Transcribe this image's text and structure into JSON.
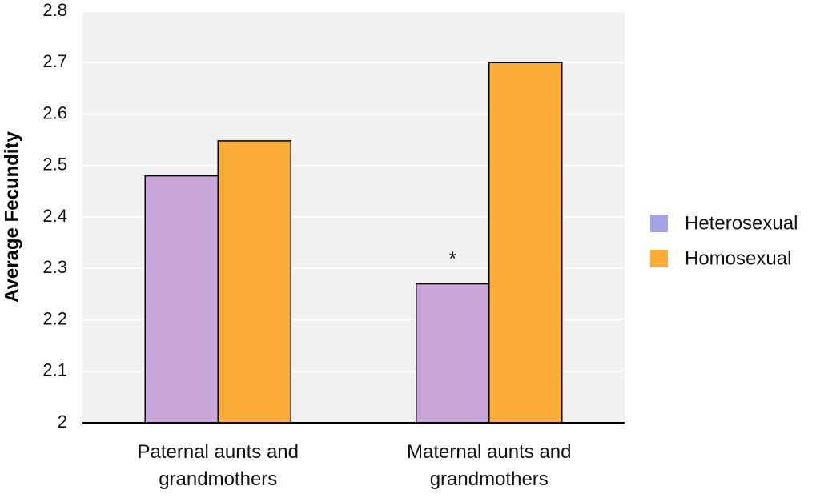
{
  "chart_data": {
    "type": "bar",
    "y_label": "Average Fecundity",
    "categories": [
      "Paternal aunts and grandmothers",
      "Maternal aunts and grandmothers"
    ],
    "series": [
      {
        "name": "Heterosexual",
        "color": "#c9a6d9",
        "legend_color": "#a3a3e6",
        "values": [
          2.48,
          2.27
        ]
      },
      {
        "name": "Homosexual",
        "color": "#fbad38",
        "legend_color": "#fbad38",
        "values": [
          2.548,
          2.7
        ]
      }
    ],
    "annotations": [
      {
        "text": "*",
        "series": 0,
        "index": 1
      }
    ],
    "ylim": [
      2,
      2.8
    ],
    "yticks": [
      2,
      2.1,
      2.2,
      2.3,
      2.4,
      2.5,
      2.6,
      2.7,
      2.8
    ],
    "grid": true,
    "legend": "right"
  }
}
